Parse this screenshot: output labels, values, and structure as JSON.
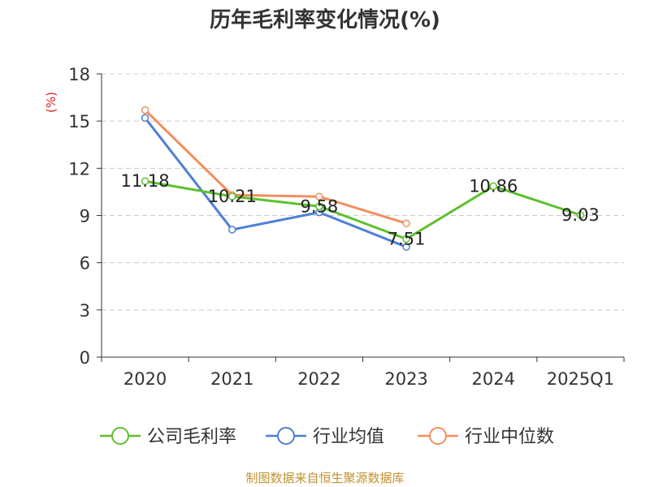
{
  "chart_data": {
    "type": "line",
    "title": "历年毛利率变化情况(%)",
    "ylabel": "(%)",
    "categories": [
      "2020",
      "2021",
      "2022",
      "2023",
      "2024",
      "2025Q1"
    ],
    "ylim": [
      0,
      18
    ],
    "yticks": [
      0,
      3,
      6,
      9,
      12,
      15,
      18
    ],
    "grid": true,
    "legend_position": "bottom",
    "series": [
      {
        "name": "公司毛利率",
        "color": "#5fbf2f",
        "values": [
          11.18,
          10.21,
          9.58,
          7.51,
          10.86,
          9.03
        ],
        "labels": [
          "11.18",
          "10.21",
          "9.58",
          "7.51",
          "10.86",
          "9.03"
        ]
      },
      {
        "name": "行业均值",
        "color": "#4d7fd6",
        "values": [
          15.2,
          8.1,
          9.2,
          7.0,
          null,
          null
        ]
      },
      {
        "name": "行业中位数",
        "color": "#f28e5e",
        "values": [
          15.7,
          10.3,
          10.2,
          8.5,
          null,
          null
        ]
      }
    ]
  },
  "source": "制图数据来自恒生聚源数据库"
}
